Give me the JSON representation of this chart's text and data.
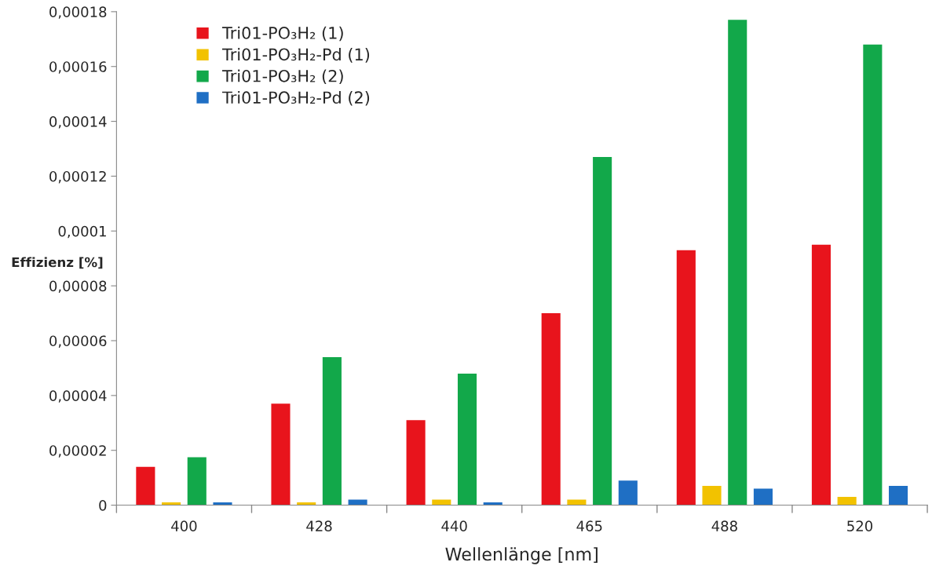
{
  "chart_data": {
    "type": "bar",
    "xlabel": "Wellenlänge [nm]",
    "ylabel": "Effizienz [%]",
    "categories": [
      "400",
      "428",
      "440",
      "465",
      "488",
      "520"
    ],
    "series": [
      {
        "name": "Tri01-PO₃H₂ (1)",
        "color": "#e8141c",
        "values": [
          1.4e-05,
          3.7e-05,
          3.1e-05,
          7e-05,
          9.3e-05,
          9.5e-05
        ]
      },
      {
        "name": "Tri01-PO₃H₂-Pd (1)",
        "color": "#f2c200",
        "values": [
          1e-06,
          1e-06,
          2e-06,
          2e-06,
          7e-06,
          3e-06
        ]
      },
      {
        "name": "Tri01-PO₃H₂ (2)",
        "color": "#12a84a",
        "values": [
          1.75e-05,
          5.4e-05,
          4.8e-05,
          0.000127,
          0.000177,
          0.000168
        ]
      },
      {
        "name": "Tri01-PO₃H₂-Pd (2)",
        "color": "#1f6fc4",
        "values": [
          1e-06,
          2e-06,
          1e-06,
          9e-06,
          6e-06,
          7e-06
        ]
      }
    ],
    "ylim": [
      0,
      0.00018
    ],
    "yticks": [
      {
        "value": 0,
        "label": "0"
      },
      {
        "value": 2e-05,
        "label": "0,00002"
      },
      {
        "value": 4e-05,
        "label": "0,00004"
      },
      {
        "value": 6e-05,
        "label": "0,00006"
      },
      {
        "value": 8e-05,
        "label": "0,00008"
      },
      {
        "value": 0.0001,
        "label": "0,0001"
      },
      {
        "value": 0.00012,
        "label": "0,00012"
      },
      {
        "value": 0.00014,
        "label": "0,00014"
      },
      {
        "value": 0.00016,
        "label": "0,00016"
      },
      {
        "value": 0.00018,
        "label": "0,00018"
      }
    ],
    "legend": "top left",
    "grid": false
  }
}
